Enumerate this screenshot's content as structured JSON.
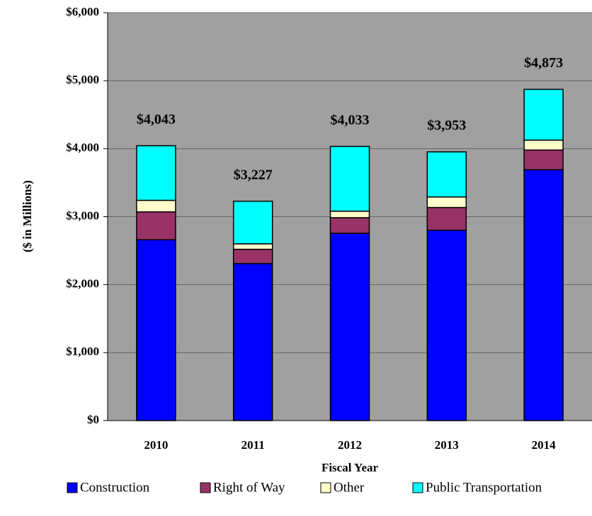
{
  "chart_data": {
    "type": "stacked_bar",
    "x_label": "Fiscal Year",
    "y_label": "($ in Millions)",
    "categories": [
      "2010",
      "2011",
      "2012",
      "2013",
      "2014"
    ],
    "series": [
      {
        "name": "Construction",
        "color": "#0000ff",
        "values": [
          2660,
          2310,
          2755,
          2800,
          3690
        ]
      },
      {
        "name": "Right of Way",
        "color": "#993366",
        "values": [
          410,
          210,
          230,
          335,
          290
        ]
      },
      {
        "name": "Other",
        "color": "#ffffcc",
        "values": [
          170,
          80,
          95,
          155,
          145
        ]
      },
      {
        "name": "Public Transportation",
        "color": "#00ffff",
        "values": [
          803,
          627,
          953,
          663,
          748
        ]
      }
    ],
    "totals": [
      4043,
      3227,
      4033,
      3953,
      4873
    ],
    "total_labels": [
      "$4,043",
      "$3,227",
      "$4,033",
      "$3,953",
      "$4,873"
    ],
    "ylim": [
      0,
      6000
    ],
    "yticks": [
      {
        "value": 0,
        "label": "$0"
      },
      {
        "value": 1000,
        "label": "$1,000"
      },
      {
        "value": 2000,
        "label": "$2,000"
      },
      {
        "value": 3000,
        "label": "$3,000"
      },
      {
        "value": 4000,
        "label": "$4,000"
      },
      {
        "value": 5000,
        "label": "$5,000"
      },
      {
        "value": 6000,
        "label": "$6,000"
      }
    ],
    "grid": true,
    "legend": "bottom"
  }
}
